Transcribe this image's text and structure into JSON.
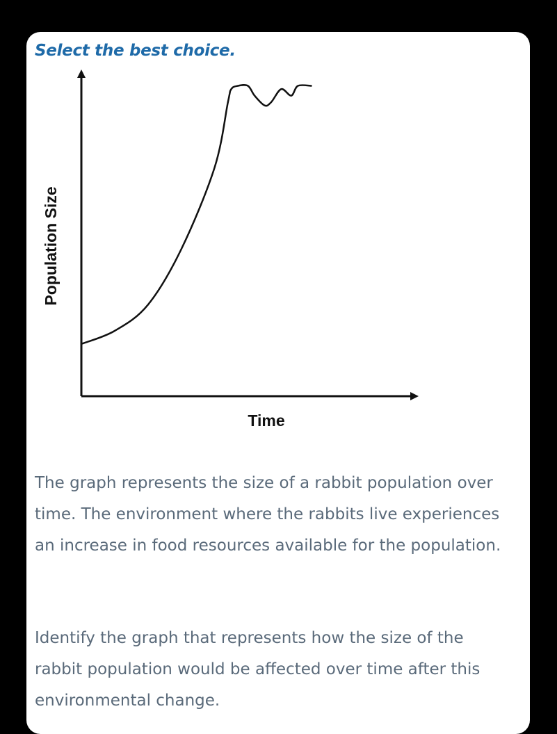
{
  "colors": {
    "background": "#000000",
    "card": "#ffffff",
    "prompt": "#1e6aa8",
    "body_text": "#5a6a7a",
    "chart_line": "#111111"
  },
  "question": {
    "prompt": "Select the best choice.",
    "paragraph_1": "The graph represents the size of a rabbit population over time. The environment where the rabbits live experiences an increase in food resources available for the population.",
    "paragraph_2": "Identify the graph that represents how the size of the rabbit population would be affected over time after this environmental change."
  },
  "chart_data": {
    "type": "line",
    "title": "",
    "xlabel": "Time",
    "ylabel": "Population Size",
    "x_ticks": [],
    "y_ticks": [],
    "grid": false,
    "legend": "none",
    "series": [
      {
        "x": [
          0,
          0.1,
          0.2,
          0.3,
          0.4,
          0.44,
          0.45,
          0.47,
          0.5,
          0.52,
          0.55,
          0.57,
          0.6,
          0.63,
          0.65,
          0.69
        ],
        "y": [
          0.16,
          0.2,
          0.28,
          0.45,
          0.7,
          0.9,
          0.94,
          0.95,
          0.95,
          0.92,
          0.89,
          0.9,
          0.94,
          0.92,
          0.95,
          0.95
        ]
      }
    ]
  }
}
